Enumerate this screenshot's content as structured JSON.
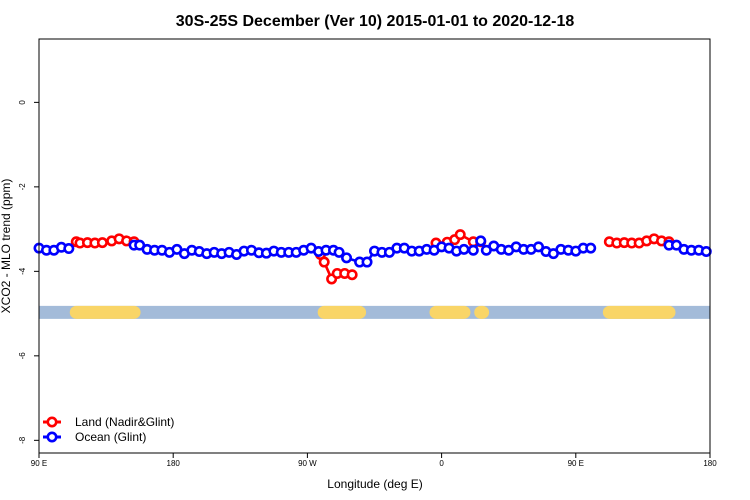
{
  "chart_data": {
    "type": "line",
    "title": "30S-25S December (Ver 10)   2015-01-01 to 2020-12-18",
    "xlabel": "Longitude (deg E)",
    "ylabel": "XCO2 - MLO trend (ppm)",
    "xlim": [
      90,
      450
    ],
    "ylim": [
      -8.3,
      1.5
    ],
    "x_ticks": [
      90,
      162,
      234,
      306,
      378,
      450
    ],
    "x_tick_labels": [
      "90 E",
      "180",
      "90 W",
      "0",
      "90 E",
      "180"
    ],
    "y_ticks": [
      0,
      -2,
      -4,
      -6,
      -8
    ],
    "y_tick_labels": [
      "0",
      "-2",
      "-4",
      "-6",
      "-8"
    ],
    "grid": false,
    "legend_position": "bottom-left",
    "land_mask": {
      "y": -4.97,
      "ocean_color": "#a3bbd9",
      "land_color": "#f9d567",
      "land_segments": [
        [
          110,
          141
        ],
        [
          243,
          262
        ],
        [
          303,
          318
        ],
        [
          327,
          328
        ],
        [
          396,
          428
        ]
      ]
    },
    "series": [
      {
        "name": "Land (Nadir&Glint)",
        "color": "#ff0000",
        "points": [
          [
            110,
            -3.3
          ],
          [
            112,
            -3.33
          ],
          [
            116,
            -3.32
          ],
          [
            120,
            -3.33
          ],
          [
            124,
            -3.32
          ],
          [
            129,
            -3.28
          ],
          [
            133,
            -3.23
          ],
          [
            137,
            -3.28
          ],
          [
            141,
            -3.3
          ],
          [
            241,
            -3.6
          ],
          [
            243,
            -3.78
          ],
          [
            247,
            -4.18
          ],
          [
            250,
            -4.05
          ],
          [
            254,
            -4.05
          ],
          [
            258,
            -4.08
          ],
          [
            303,
            -3.33
          ],
          [
            309,
            -3.31
          ],
          [
            313,
            -3.25
          ],
          [
            316,
            -3.13
          ],
          [
            323,
            -3.3
          ],
          [
            327,
            -3.3
          ],
          [
            396,
            -3.3
          ],
          [
            400,
            -3.33
          ],
          [
            404,
            -3.32
          ],
          [
            408,
            -3.33
          ],
          [
            412,
            -3.33
          ],
          [
            416,
            -3.28
          ],
          [
            420,
            -3.23
          ],
          [
            424,
            -3.28
          ],
          [
            428,
            -3.3
          ]
        ]
      },
      {
        "name": "Ocean (Glint)",
        "color": "#0000ff",
        "points": [
          [
            90,
            -3.45
          ],
          [
            94,
            -3.5
          ],
          [
            98,
            -3.5
          ],
          [
            102,
            -3.43
          ],
          [
            106,
            -3.46
          ],
          [
            141,
            -3.38
          ],
          [
            144,
            -3.38
          ],
          [
            148,
            -3.48
          ],
          [
            152,
            -3.5
          ],
          [
            156,
            -3.5
          ],
          [
            160,
            -3.55
          ],
          [
            164,
            -3.48
          ],
          [
            168,
            -3.58
          ],
          [
            172,
            -3.5
          ],
          [
            176,
            -3.53
          ],
          [
            180,
            -3.58
          ],
          [
            184,
            -3.55
          ],
          [
            188,
            -3.58
          ],
          [
            192,
            -3.55
          ],
          [
            196,
            -3.6
          ],
          [
            200,
            -3.52
          ],
          [
            204,
            -3.5
          ],
          [
            208,
            -3.56
          ],
          [
            212,
            -3.57
          ],
          [
            216,
            -3.52
          ],
          [
            220,
            -3.55
          ],
          [
            224,
            -3.55
          ],
          [
            228,
            -3.55
          ],
          [
            232,
            -3.5
          ],
          [
            236,
            -3.45
          ],
          [
            240,
            -3.53
          ],
          [
            244,
            -3.5
          ],
          [
            248,
            -3.5
          ],
          [
            251,
            -3.55
          ],
          [
            255,
            -3.68
          ],
          [
            262,
            -3.78
          ],
          [
            266,
            -3.78
          ],
          [
            270,
            -3.52
          ],
          [
            274,
            -3.55
          ],
          [
            278,
            -3.55
          ],
          [
            282,
            -3.45
          ],
          [
            286,
            -3.45
          ],
          [
            290,
            -3.52
          ],
          [
            294,
            -3.52
          ],
          [
            298,
            -3.48
          ],
          [
            302,
            -3.5
          ],
          [
            306,
            -3.42
          ],
          [
            310,
            -3.45
          ],
          [
            314,
            -3.52
          ],
          [
            318,
            -3.48
          ],
          [
            323,
            -3.5
          ],
          [
            327,
            -3.28
          ],
          [
            330,
            -3.5
          ],
          [
            334,
            -3.4
          ],
          [
            338,
            -3.48
          ],
          [
            342,
            -3.5
          ],
          [
            346,
            -3.42
          ],
          [
            350,
            -3.48
          ],
          [
            354,
            -3.48
          ],
          [
            358,
            -3.42
          ],
          [
            362,
            -3.53
          ],
          [
            366,
            -3.58
          ],
          [
            370,
            -3.48
          ],
          [
            374,
            -3.5
          ],
          [
            378,
            -3.52
          ],
          [
            382,
            -3.45
          ],
          [
            386,
            -3.45
          ],
          [
            428,
            -3.38
          ],
          [
            432,
            -3.38
          ],
          [
            436,
            -3.48
          ],
          [
            440,
            -3.5
          ],
          [
            444,
            -3.5
          ],
          [
            448,
            -3.53
          ]
        ]
      }
    ]
  }
}
